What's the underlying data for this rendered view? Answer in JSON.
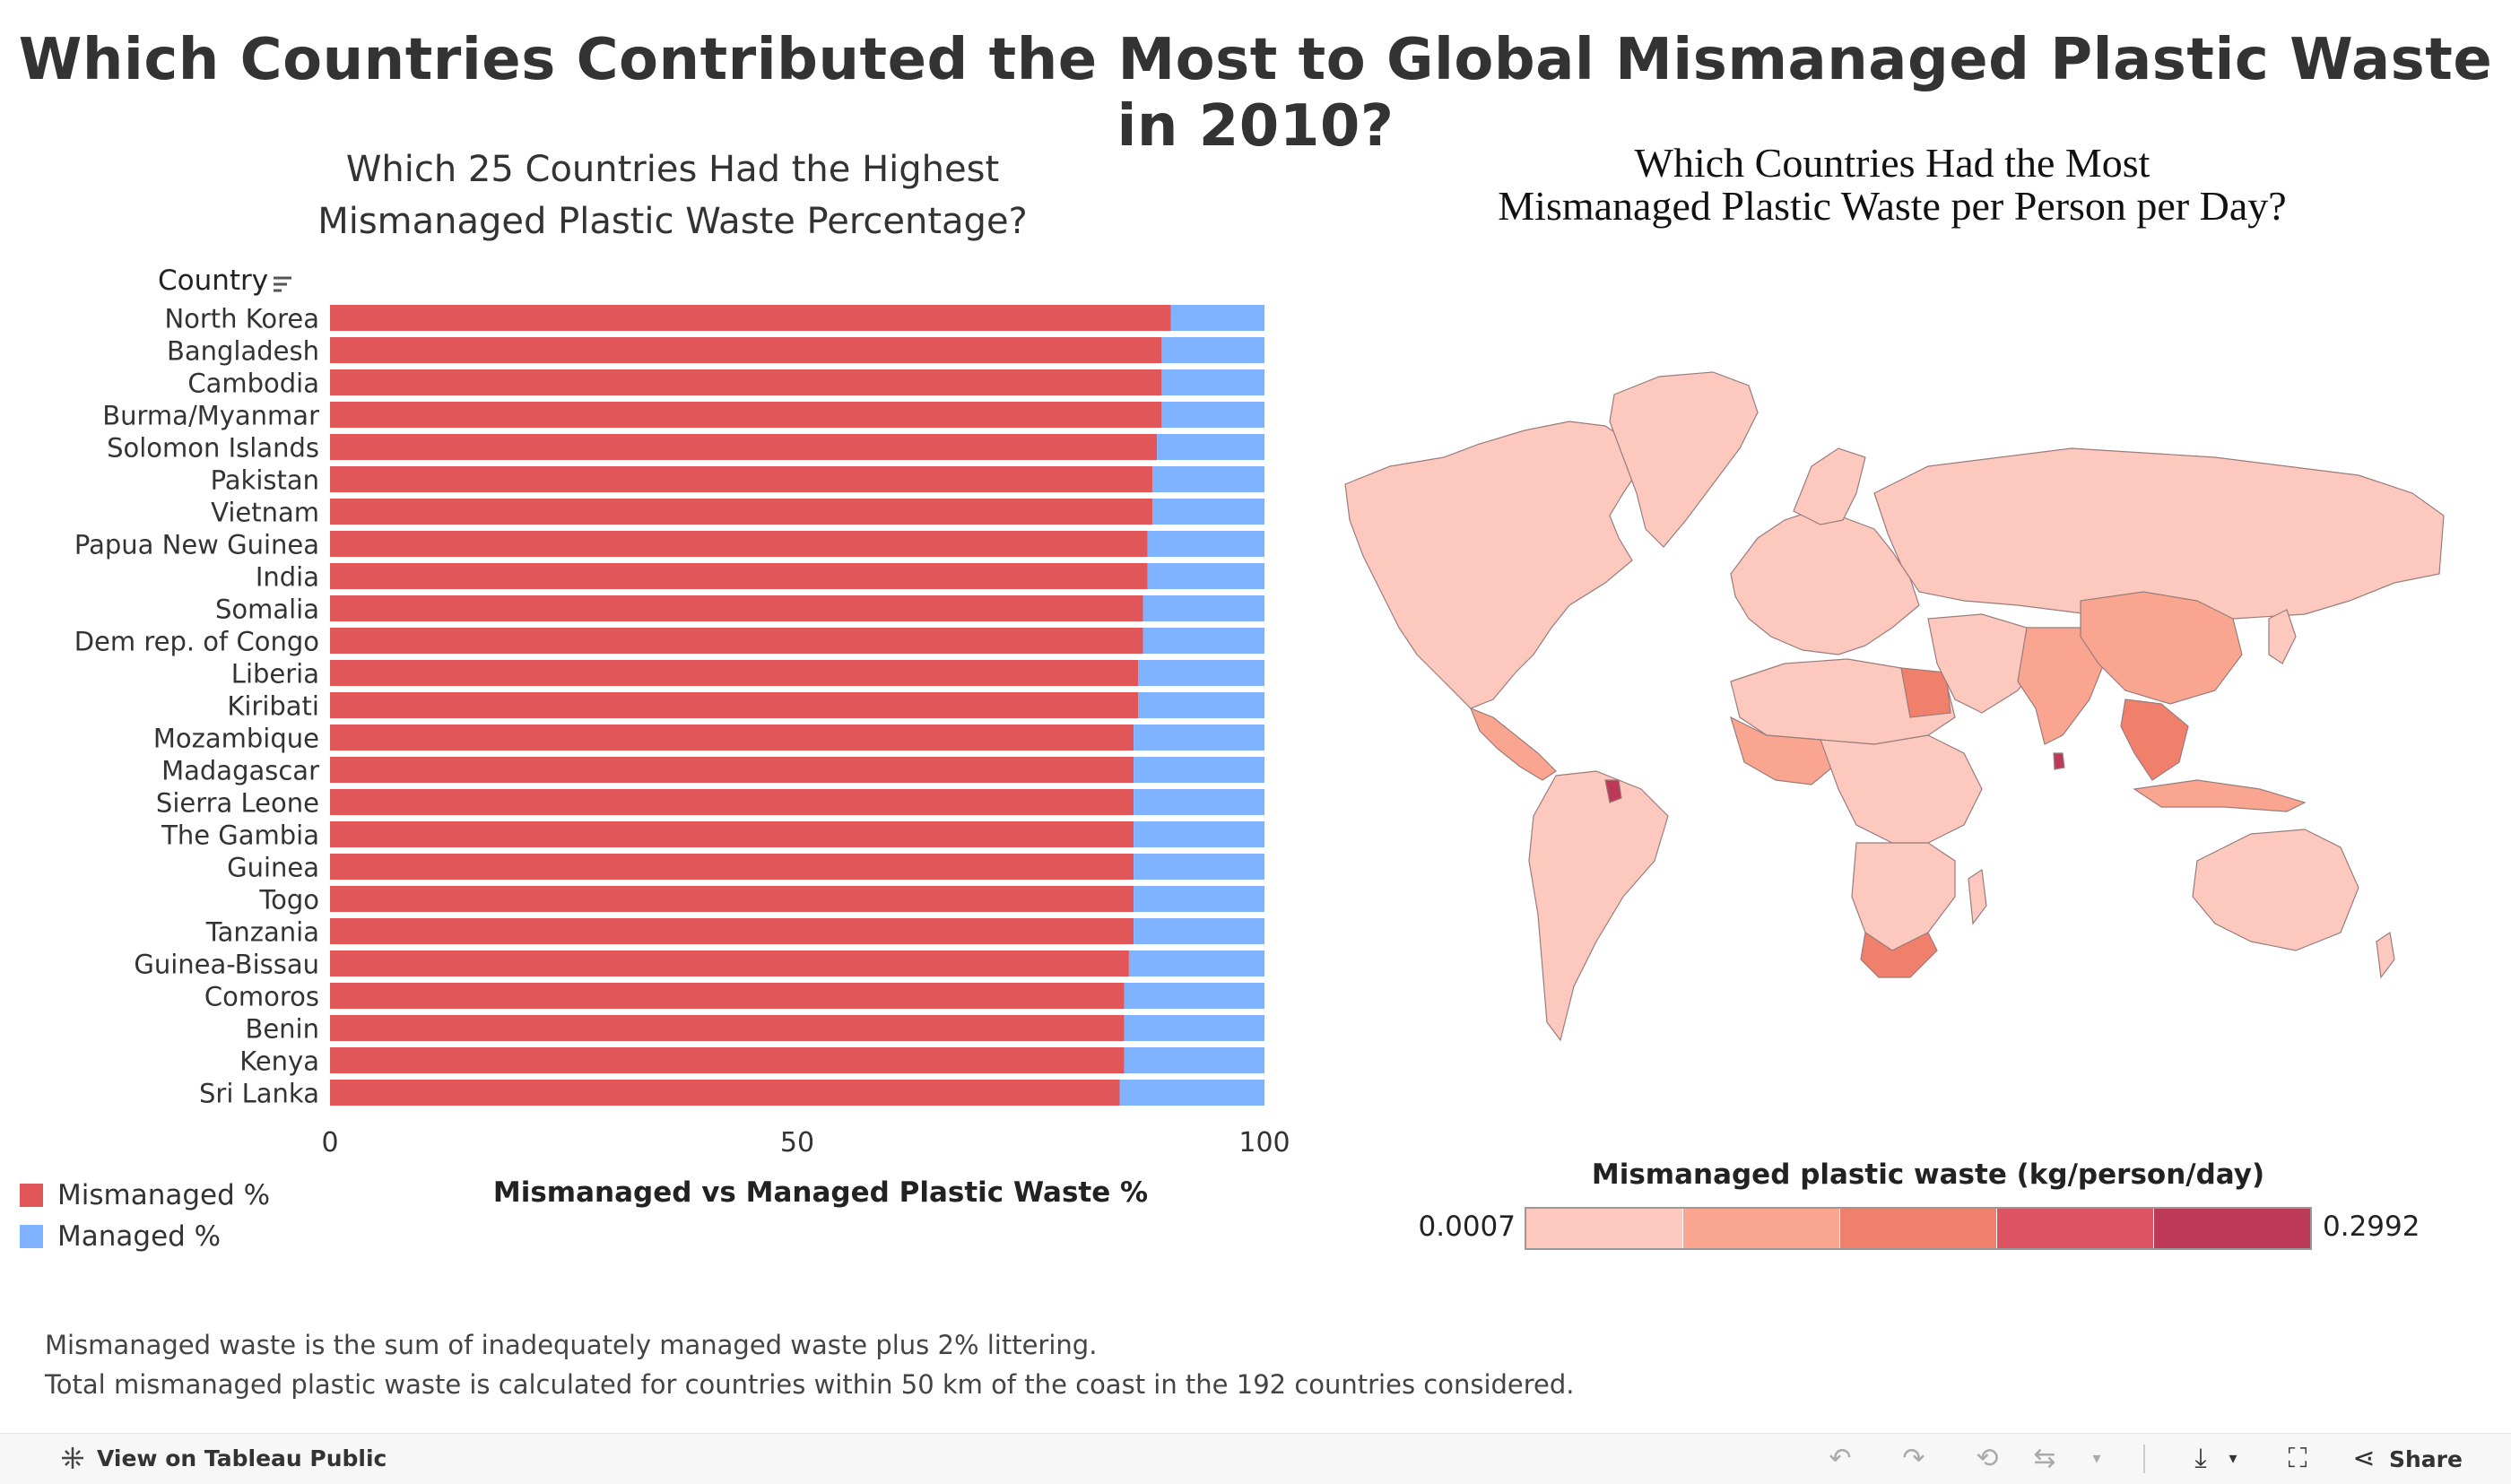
{
  "main_title": "Which Countries Contributed the Most to Global Mismanaged Plastic Waste in 2010?",
  "bar_chart": {
    "title_line1": "Which 25 Countries Had the Highest",
    "title_line2": "Mismanaged Plastic Waste Percentage?",
    "y_header": "Country",
    "x_title": "Mismanaged vs Managed Plastic Waste %"
  },
  "legend": {
    "mismanaged_label": "Mismanaged %",
    "managed_label": "Managed %",
    "mismanaged_color": "#e15759",
    "managed_color": "#7fb2ff"
  },
  "chart_data": [
    {
      "type": "bar",
      "orientation": "horizontal",
      "stacked": true,
      "title": "Which 25 Countries Had the Highest Mismanaged Plastic Waste Percentage?",
      "xlabel": "Mismanaged vs Managed Plastic Waste %",
      "ylabel": "Country",
      "xlim": [
        0,
        100
      ],
      "xticks": [
        0,
        50,
        100
      ],
      "categories": [
        "North Korea",
        "Bangladesh",
        "Cambodia",
        "Burma/Myanmar",
        "Solomon Islands",
        "Pakistan",
        "Vietnam",
        "Papua New Guinea",
        "India",
        "Somalia",
        "Dem rep. of Congo",
        "Liberia",
        "Kiribati",
        "Mozambique",
        "Madagascar",
        "Sierra Leone",
        "The Gambia",
        "Guinea",
        "Togo",
        "Tanzania",
        "Guinea-Bissau",
        "Comoros",
        "Benin",
        "Kenya",
        "Sri Lanka"
      ],
      "series": [
        {
          "name": "Mismanaged %",
          "color": "#e15759",
          "values": [
            90,
            89,
            89,
            89,
            88.5,
            88,
            88,
            87.5,
            87.5,
            87,
            87,
            86.5,
            86.5,
            86,
            86,
            86,
            86,
            86,
            86,
            86,
            85.5,
            85,
            85,
            85,
            84.5
          ]
        },
        {
          "name": "Managed %",
          "color": "#7fb2ff",
          "values": [
            10,
            11,
            11,
            11,
            11.5,
            12,
            12,
            12.5,
            12.5,
            13,
            13,
            13.5,
            13.5,
            14,
            14,
            14,
            14,
            14,
            14,
            14,
            14.5,
            15,
            15,
            15,
            15.5
          ]
        }
      ]
    },
    {
      "type": "heatmap",
      "subtype": "choropleth",
      "title": "Which Countries Had the Most Mismanaged Plastic Waste per Person per Day?",
      "legend_title": "Mismanaged plastic waste (kg/person/day)",
      "range": [
        0.0007,
        0.2992
      ],
      "steps": [
        "#fdc9bf",
        "#f9a58f",
        "#f07f6b",
        "#dd5364",
        "#bc3957"
      ]
    }
  ],
  "map": {
    "title_line1": "Which Countries Had the Most",
    "title_line2": "Mismanaged Plastic Waste per Person per Day?",
    "legend_title": "Mismanaged plastic waste (kg/person/day)",
    "legend_min": "0.0007",
    "legend_max": "0.2992",
    "ocean_color": "#ffffff",
    "base_color": "#fdc9bf"
  },
  "footnote": {
    "line1": "Mismanaged waste is the sum of inadequately managed waste plus 2% littering.",
    "line2": "Total mismanaged plastic waste is calculated for countries within 50 km of the coast in the 192 countries considered."
  },
  "toolbar": {
    "view_label": "View on Tableau Public",
    "share_label": "Share"
  }
}
